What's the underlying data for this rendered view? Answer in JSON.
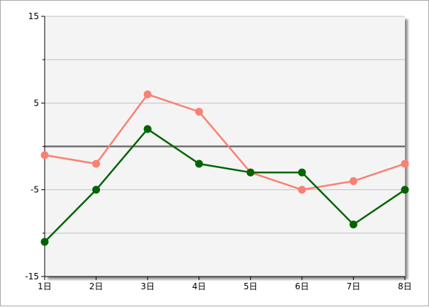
{
  "chart_data": {
    "type": "line",
    "categories": [
      "1日",
      "2日",
      "3日",
      "4日",
      "5日",
      "6日",
      "7日",
      "8日"
    ],
    "series": [
      {
        "values": [
          -1,
          -2,
          6,
          4,
          -3,
          -5,
          -4,
          -2
        ],
        "color": "#fa8072"
      },
      {
        "values": [
          -11,
          -5,
          2,
          -2,
          -3,
          -3,
          -9,
          -5
        ],
        "color": "#006400"
      }
    ],
    "ylim": [
      -15,
      15
    ],
    "yticks": [
      15,
      5,
      -5,
      -15
    ],
    "minor_yticks": [
      10,
      0,
      -10
    ],
    "zero_line": 0,
    "grid": true,
    "plot_background": "#f4f4f4",
    "gridline_color": "#c0c0c0",
    "zero_line_color": "#6e6e6e"
  }
}
